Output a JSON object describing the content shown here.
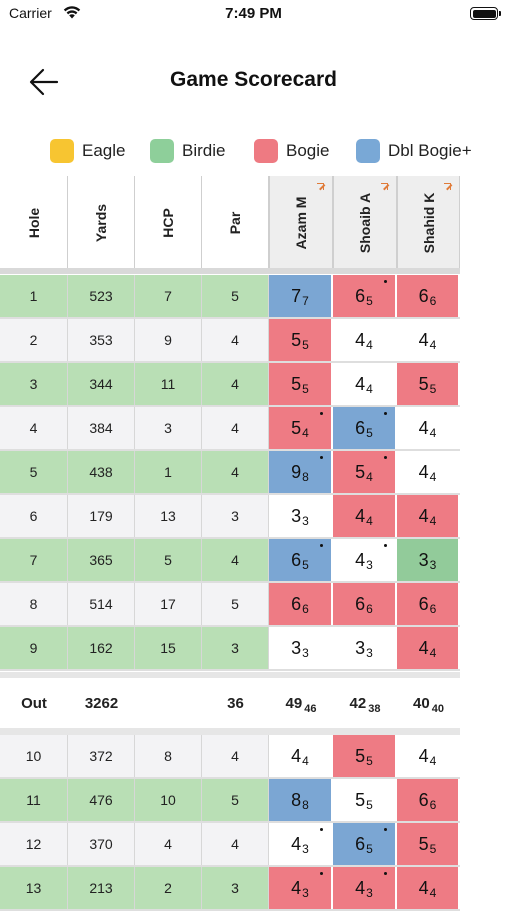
{
  "status_bar": {
    "carrier": "Carrier",
    "time": "7:49 PM"
  },
  "nav": {
    "title": "Game Scorecard"
  },
  "legend": [
    {
      "label": "Eagle",
      "color": "#f7c531"
    },
    {
      "label": "Birdie",
      "color": "#8ecf9a"
    },
    {
      "label": "Bogie",
      "color": "#ee7a82"
    },
    {
      "label": "Dbl Bogie+",
      "color": "#79a8d6"
    }
  ],
  "colors": {
    "blue": "#7ba6d3",
    "red": "#ee7b84",
    "green": "#92cb9a",
    "white": "#ffffff",
    "row_green": "#b9dfb5",
    "row_gray": "#f3f3f5"
  },
  "headers": {
    "hole": "Hole",
    "yards": "Yards",
    "hcp": "HCP",
    "par": "Par"
  },
  "players": [
    "Azam M",
    "Shoaib A",
    "Shahid K"
  ],
  "holes": [
    {
      "hole": "1",
      "yards": "523",
      "hcp": "7",
      "par": "5",
      "scores": [
        {
          "gross": "7",
          "net": "7",
          "color": "blue",
          "dot": false
        },
        {
          "gross": "6",
          "net": "5",
          "color": "red",
          "dot": true
        },
        {
          "gross": "6",
          "net": "6",
          "color": "red",
          "dot": false
        }
      ]
    },
    {
      "hole": "2",
      "yards": "353",
      "hcp": "9",
      "par": "4",
      "scores": [
        {
          "gross": "5",
          "net": "5",
          "color": "red",
          "dot": false
        },
        {
          "gross": "4",
          "net": "4",
          "color": "white",
          "dot": false
        },
        {
          "gross": "4",
          "net": "4",
          "color": "white",
          "dot": false
        }
      ]
    },
    {
      "hole": "3",
      "yards": "344",
      "hcp": "11",
      "par": "4",
      "scores": [
        {
          "gross": "5",
          "net": "5",
          "color": "red",
          "dot": false
        },
        {
          "gross": "4",
          "net": "4",
          "color": "white",
          "dot": false
        },
        {
          "gross": "5",
          "net": "5",
          "color": "red",
          "dot": false
        }
      ]
    },
    {
      "hole": "4",
      "yards": "384",
      "hcp": "3",
      "par": "4",
      "scores": [
        {
          "gross": "5",
          "net": "4",
          "color": "red",
          "dot": true
        },
        {
          "gross": "6",
          "net": "5",
          "color": "blue",
          "dot": true
        },
        {
          "gross": "4",
          "net": "4",
          "color": "white",
          "dot": false
        }
      ]
    },
    {
      "hole": "5",
      "yards": "438",
      "hcp": "1",
      "par": "4",
      "scores": [
        {
          "gross": "9",
          "net": "8",
          "color": "blue",
          "dot": true
        },
        {
          "gross": "5",
          "net": "4",
          "color": "red",
          "dot": true
        },
        {
          "gross": "4",
          "net": "4",
          "color": "white",
          "dot": false
        }
      ]
    },
    {
      "hole": "6",
      "yards": "179",
      "hcp": "13",
      "par": "3",
      "scores": [
        {
          "gross": "3",
          "net": "3",
          "color": "white",
          "dot": false
        },
        {
          "gross": "4",
          "net": "4",
          "color": "red",
          "dot": false
        },
        {
          "gross": "4",
          "net": "4",
          "color": "red",
          "dot": false
        }
      ]
    },
    {
      "hole": "7",
      "yards": "365",
      "hcp": "5",
      "par": "4",
      "scores": [
        {
          "gross": "6",
          "net": "5",
          "color": "blue",
          "dot": true
        },
        {
          "gross": "4",
          "net": "3",
          "color": "white",
          "dot": true
        },
        {
          "gross": "3",
          "net": "3",
          "color": "green",
          "dot": false
        }
      ]
    },
    {
      "hole": "8",
      "yards": "514",
      "hcp": "17",
      "par": "5",
      "scores": [
        {
          "gross": "6",
          "net": "6",
          "color": "red",
          "dot": false
        },
        {
          "gross": "6",
          "net": "6",
          "color": "red",
          "dot": false
        },
        {
          "gross": "6",
          "net": "6",
          "color": "red",
          "dot": false
        }
      ]
    },
    {
      "hole": "9",
      "yards": "162",
      "hcp": "15",
      "par": "3",
      "scores": [
        {
          "gross": "3",
          "net": "3",
          "color": "white",
          "dot": false
        },
        {
          "gross": "3",
          "net": "3",
          "color": "white",
          "dot": false
        },
        {
          "gross": "4",
          "net": "4",
          "color": "red",
          "dot": false
        }
      ]
    },
    {
      "hole": "10",
      "yards": "372",
      "hcp": "8",
      "par": "4",
      "scores": [
        {
          "gross": "4",
          "net": "4",
          "color": "white",
          "dot": false
        },
        {
          "gross": "5",
          "net": "5",
          "color": "red",
          "dot": false
        },
        {
          "gross": "4",
          "net": "4",
          "color": "white",
          "dot": false
        }
      ]
    },
    {
      "hole": "11",
      "yards": "476",
      "hcp": "10",
      "par": "5",
      "scores": [
        {
          "gross": "8",
          "net": "8",
          "color": "blue",
          "dot": false
        },
        {
          "gross": "5",
          "net": "5",
          "color": "white",
          "dot": false
        },
        {
          "gross": "6",
          "net": "6",
          "color": "red",
          "dot": false
        }
      ]
    },
    {
      "hole": "12",
      "yards": "370",
      "hcp": "4",
      "par": "4",
      "scores": [
        {
          "gross": "4",
          "net": "3",
          "color": "white",
          "dot": true
        },
        {
          "gross": "6",
          "net": "5",
          "color": "blue",
          "dot": true
        },
        {
          "gross": "5",
          "net": "5",
          "color": "red",
          "dot": false
        }
      ]
    },
    {
      "hole": "13",
      "yards": "213",
      "hcp": "2",
      "par": "3",
      "scores": [
        {
          "gross": "4",
          "net": "3",
          "color": "red",
          "dot": true
        },
        {
          "gross": "4",
          "net": "3",
          "color": "red",
          "dot": true
        },
        {
          "gross": "4",
          "net": "4",
          "color": "red",
          "dot": false
        }
      ]
    }
  ],
  "out": {
    "label": "Out",
    "yards": "3262",
    "par": "36",
    "totals": [
      {
        "gross": "49",
        "net": "46"
      },
      {
        "gross": "42",
        "net": "38"
      },
      {
        "gross": "40",
        "net": "40"
      }
    ]
  }
}
